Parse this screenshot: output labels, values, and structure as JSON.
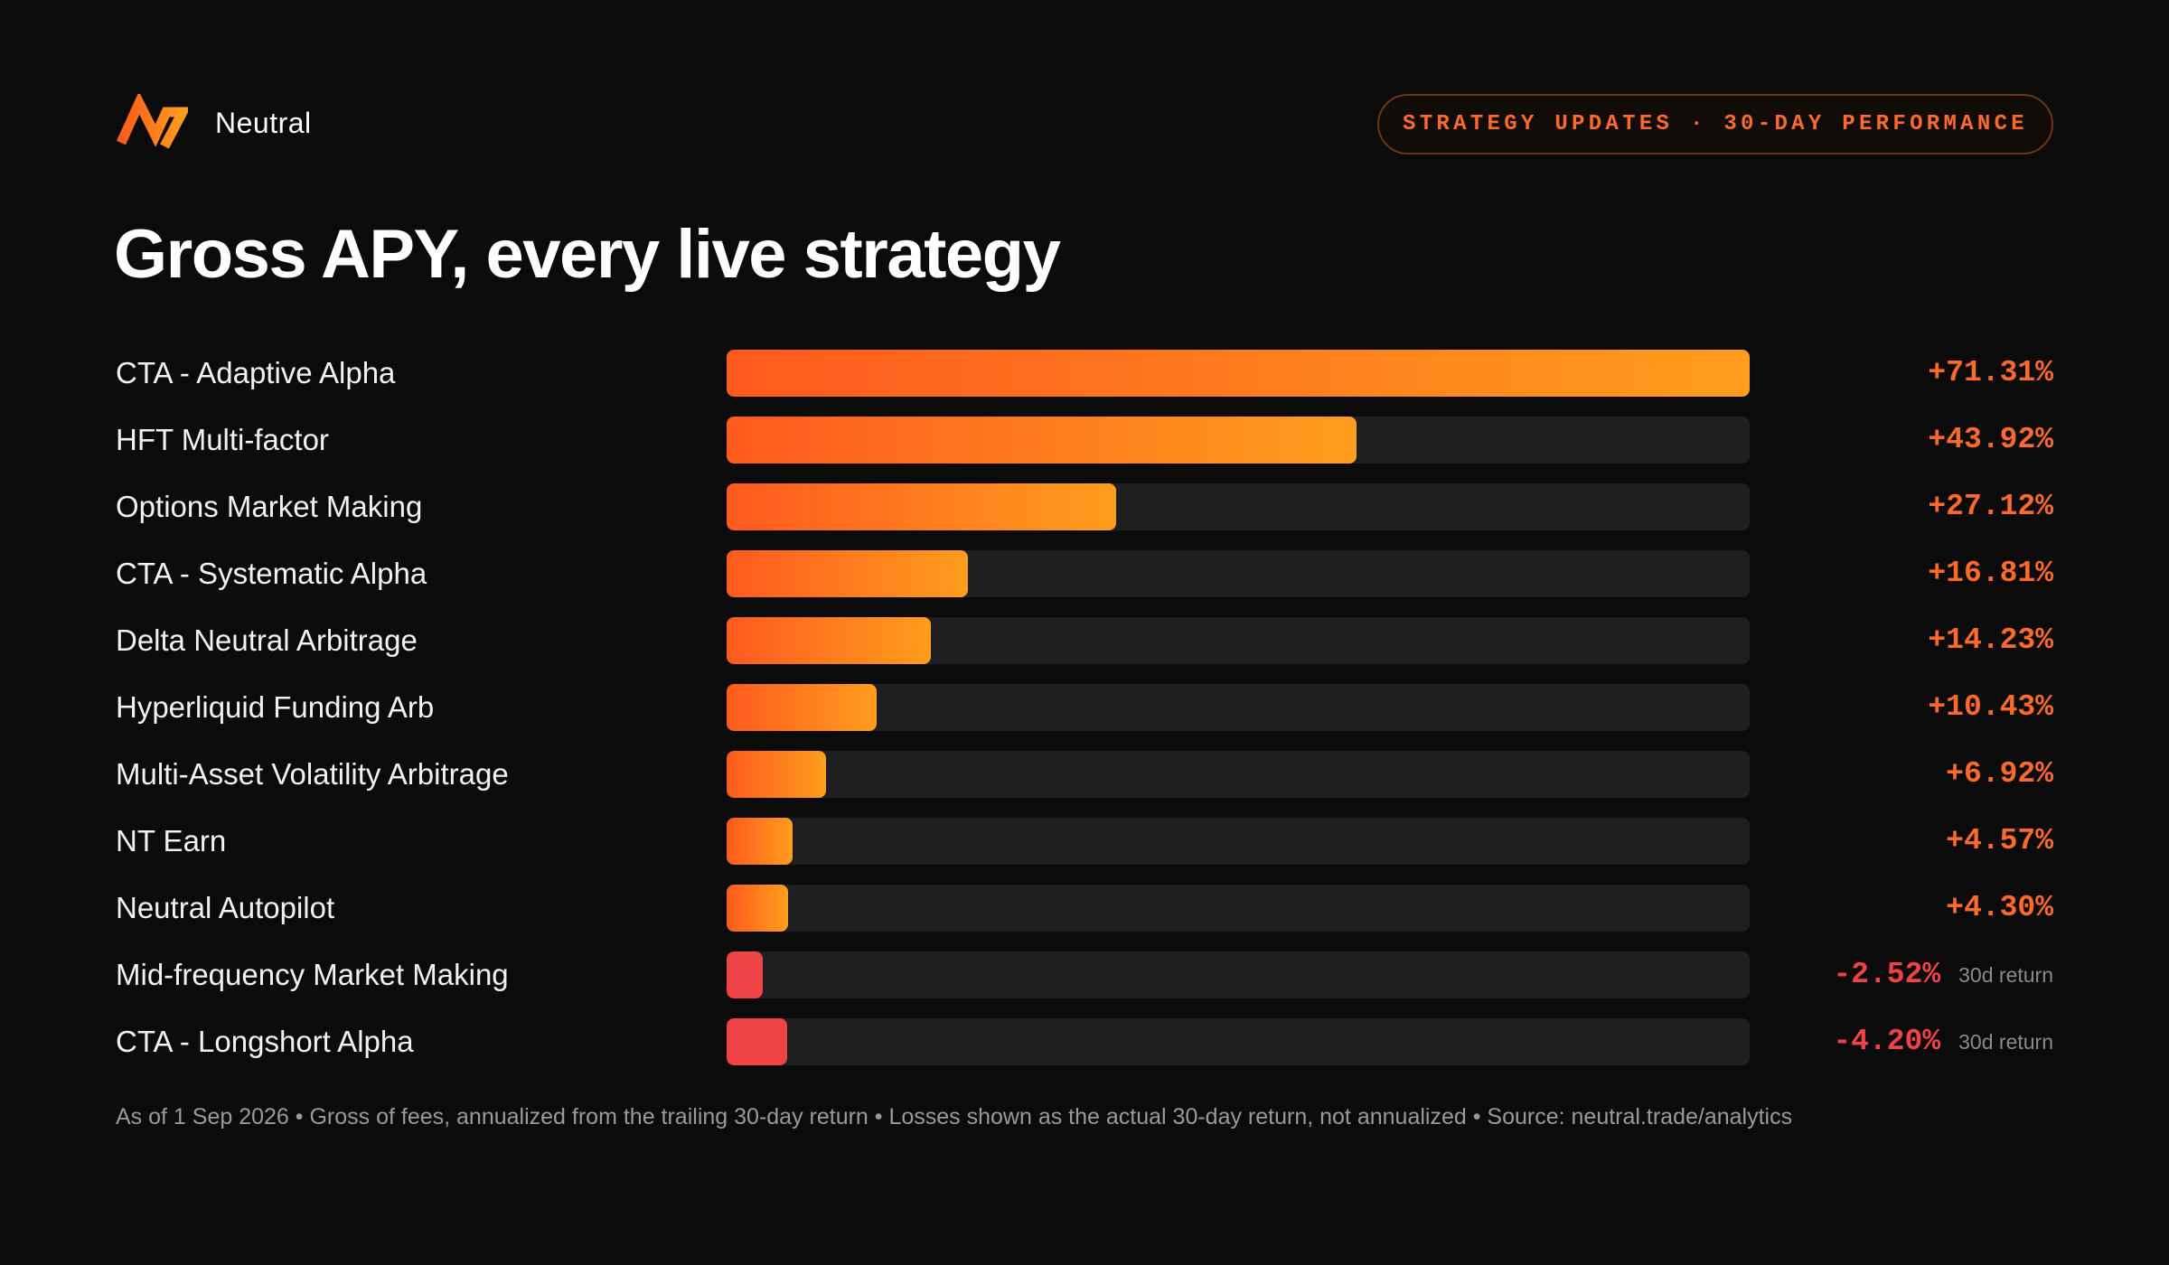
{
  "brand": {
    "name": "Neutral",
    "logo_icon": "neutral-logo-icon"
  },
  "badge": {
    "text": "STRATEGY UPDATES · 30-DAY PERFORMANCE"
  },
  "colors": {
    "background": "#0b0b0c",
    "accent": "#ff6a2b",
    "bar_gradient_start": "#ff5a1e",
    "bar_gradient_end": "#ff9d1d",
    "negative": "#ef4346",
    "track": "#1f1f21"
  },
  "chart_data": {
    "type": "bar",
    "orientation": "horizontal",
    "title": "Gross APY, every live strategy",
    "xlim": [
      0,
      71.31
    ],
    "rows": [
      {
        "label": "CTA - Adaptive Alpha",
        "value": 71.31,
        "display": "+71.31%",
        "note": ""
      },
      {
        "label": "HFT Multi-factor",
        "value": 43.92,
        "display": "+43.92%",
        "note": ""
      },
      {
        "label": "Options Market Making",
        "value": 27.12,
        "display": "+27.12%",
        "note": ""
      },
      {
        "label": "CTA - Systematic Alpha",
        "value": 16.81,
        "display": "+16.81%",
        "note": ""
      },
      {
        "label": "Delta Neutral Arbitrage",
        "value": 14.23,
        "display": "+14.23%",
        "note": ""
      },
      {
        "label": "Hyperliquid Funding Arb",
        "value": 10.43,
        "display": "+10.43%",
        "note": ""
      },
      {
        "label": "Multi-Asset Volatility Arbitrage",
        "value": 6.92,
        "display": "+6.92%",
        "note": ""
      },
      {
        "label": "NT Earn",
        "value": 4.57,
        "display": "+4.57%",
        "note": ""
      },
      {
        "label": "Neutral Autopilot",
        "value": 4.3,
        "display": "+4.30%",
        "note": ""
      },
      {
        "label": "Mid-frequency Market Making",
        "value": -2.52,
        "display": "-2.52%",
        "note": "30d return"
      },
      {
        "label": "CTA - Longshort Alpha",
        "value": -4.2,
        "display": "-4.20%",
        "note": "30d return"
      }
    ]
  },
  "footnote": "As of 1 Sep 2026 • Gross of fees, annualized from the trailing 30-day return • Losses shown as the actual 30-day return, not annualized • Source: neutral.trade/analytics"
}
